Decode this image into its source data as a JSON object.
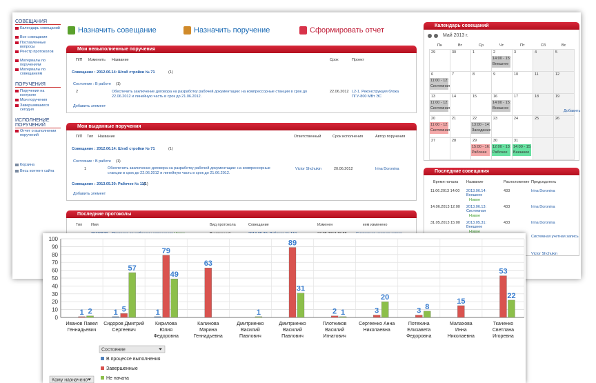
{
  "sidebar": {
    "groups": [
      {
        "title": "СОВЕЩАНИЯ",
        "items": [
          "Календарь совещаний",
          "Все совещания",
          "Поставленные вопросы",
          "Реестр протоколов",
          "Материалы по поручениям",
          "Материалы по совещаниям"
        ]
      },
      {
        "title": "ПОРУЧЕНИЯ",
        "items": [
          "Поручения на контроле",
          "Мои поручения",
          "Завершившиеся сегодня"
        ]
      },
      {
        "title": "ИСПОЛНЕНИЕ ПОРУЧЕНИЙ",
        "items": [
          "Отчет о выполнении поручений"
        ]
      }
    ],
    "links": [
      "Корзина",
      "Весь контент сайта"
    ]
  },
  "toolbar": [
    "Назначить совещание",
    "Назначить поручение",
    "Сформировать отчет"
  ],
  "open_tasks": {
    "title": "Мои невыполненные поручения",
    "columns": [
      "П/П",
      "Изменить",
      "Название",
      "Срок",
      "Проект"
    ],
    "group": "Совещание : 2012.06.14: Штаб стройки № 71",
    "group_count": "(1)",
    "subgroup": "Состояние : В работе",
    "subgroup_count": "(1)",
    "row": [
      "2",
      "Обеспечить заключение договора на разработку рабочей документации: на компрессорные станции в срок до 22.06.2012 и линейную часть в срок до 21.06.2012.",
      "22.06.2012",
      "L2-1. Реконструкция блока ПГУ-800 МВт ЭС"
    ],
    "add": "Добавить элемент"
  },
  "issued_tasks": {
    "title": "Мои выданные поручения",
    "columns": [
      "П/П",
      "Тип",
      "Название",
      "Ответственный",
      "Срок исполнения",
      "Автор поручения"
    ],
    "group": "Совещание : 2012.06.14: Штаб стройки № 71",
    "group_count": "(1)",
    "subgroup": "Состояние : В работе",
    "subgroup_count": "(1)",
    "row": [
      "1",
      "Обеспечить заключение договора на разработку рабочей документации: на компрессорные станции в срок до 22.06.2012 и линейную часть в срок до 21.06.2012.",
      "Victor Shchukin",
      "20.06.2012",
      "Irina Doronina"
    ],
    "group2": "Совещание : 2013.05.30: Рабочее № 110",
    "group2_count": "(1)",
    "add": "Добавить элемент"
  },
  "protocols": {
    "title": "Последние протоколы",
    "columns": [
      "Тип",
      "Имя",
      "Вид протокола",
      "Совещание",
      "Изменен",
      "кем изменено"
    ],
    "row": [
      "20130530",
      "Протокол по рабочему совещанию",
      "Новое",
      "Внутренний",
      "2013.05.30: Рабочее № 110",
      "27.05.2013 15:55",
      "Системная учетная запись"
    ]
  },
  "calendar": {
    "title": "Календарь совещаний",
    "month": "Май 2013 г.",
    "weekdays": [
      "Пн",
      "Вт",
      "Ср",
      "Чт",
      "Пт",
      "Сб",
      "Вс"
    ],
    "weeks": [
      [
        29,
        30,
        1,
        2,
        3,
        4,
        5
      ],
      [
        6,
        7,
        8,
        9,
        10,
        11,
        12
      ],
      [
        13,
        14,
        15,
        16,
        17,
        18,
        19
      ],
      [
        20,
        21,
        22,
        23,
        24,
        25,
        26
      ],
      [
        27,
        28,
        29,
        30,
        31,
        null,
        null
      ]
    ],
    "events": [
      {
        "week": 0,
        "day": 3,
        "time": "14:00 - 15:",
        "name": "Внешнее",
        "color": "#c8c8c8"
      },
      {
        "week": 1,
        "day": 0,
        "time": "11:00 - 12:",
        "name": "Системная",
        "color": "#c8c8c8"
      },
      {
        "week": 2,
        "day": 0,
        "time": "11:00 - 12:",
        "name": "Системная",
        "color": "#c8c8c8"
      },
      {
        "week": 2,
        "day": 3,
        "time": "14:00 - 15:",
        "name": "Внешнее",
        "color": "#c8c8c8"
      },
      {
        "week": 3,
        "day": 0,
        "time": "11:00 - 12:",
        "name": "Системная",
        "color": "#f4a8a8"
      },
      {
        "week": 3,
        "day": 2,
        "time": "13:00 - 14:",
        "name": "Заседание",
        "color": "#c8c8c8"
      },
      {
        "week": 4,
        "day": 2,
        "time": "15:00 - 16:",
        "name": "Рабочее",
        "color": "#f4a8a8"
      },
      {
        "week": 4,
        "day": 3,
        "time": "12:00 - 13:",
        "name": "Рабочее",
        "color": "#66e0a0"
      },
      {
        "week": 4,
        "day": 4,
        "time": "14:00 - 15:",
        "name": "Внешнее",
        "color": "#66e0a0"
      }
    ],
    "add": "Добавить"
  },
  "meetings": {
    "title": "Последние совещания",
    "columns": [
      "Время начала",
      "Название",
      "Расположение",
      "Председатель"
    ],
    "rows": [
      [
        "11.06.2013 14:00",
        "2013.06.14: Внешнее",
        "Новое",
        "433",
        "Irina Doronina"
      ],
      [
        "14.06.2013 12:00",
        "2013.06.13: Системная",
        "Новое",
        "433",
        "Irina Doronina"
      ],
      [
        "31.05.2013 15:00",
        "2013.05.31: Внешнее",
        "Новое",
        "433",
        "Irina Doronina"
      ]
    ],
    "extra_chairs": [
      "Системная учетная запись",
      "Victor Shchukin"
    ]
  },
  "chart_controls": {
    "state_filter": "Состояние",
    "assignee_filter": "Кому назначено"
  },
  "chart_data": {
    "type": "bar",
    "categories": [
      "Иванов Павел\nГеннадьевич",
      "Сидоров Дмитрий\nСергеевич",
      "Кирилова\nЮлия\nФедоровна",
      "Калинова\nМарина\nГеннадьевна",
      "Дмитриенко\nВасилий\nПавлович",
      "Дмитриенко\nВасилий\nПавлович",
      "Плотников\nВасилий\nИгнатович",
      "Сергеенко Анна\nНиколаевна",
      "Потехина\nЕлизавета\nФедоровна",
      "Малахова\nИнна\nНиколаевна",
      "Ткаченко\nСветлана\nИгоревна"
    ],
    "series": [
      {
        "name": "В процессе выполнения",
        "color": "#4f81bd",
        "values": [
          null,
          1,
          1,
          null,
          null,
          null,
          null,
          null,
          null,
          null,
          null
        ]
      },
      {
        "name": "Завершенные",
        "color": "#d9534f",
        "values": [
          1,
          5,
          79,
          63,
          null,
          89,
          2,
          3,
          3,
          15,
          53
        ]
      },
      {
        "name": "Не начата",
        "color": "#8cbf4a",
        "values": [
          2,
          57,
          49,
          null,
          1,
          31,
          1,
          20,
          8,
          null,
          22
        ]
      }
    ],
    "ylim": [
      0,
      100
    ],
    "yticks": [
      0,
      10,
      20,
      30,
      40,
      50,
      60,
      70,
      80,
      90,
      100
    ],
    "grid": true,
    "label_color": "#3a7ecf"
  }
}
